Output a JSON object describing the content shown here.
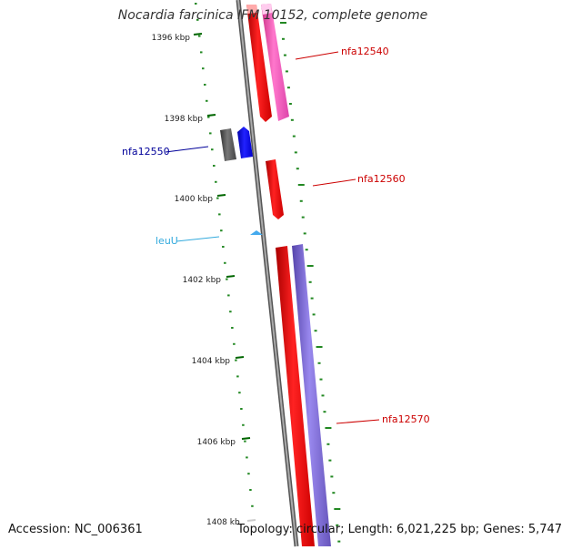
{
  "title": "Nocardia farcinica IFM 10152, complete genome",
  "accession": "Accession: NC_006361",
  "summary": "Topology: circular; Length: 6,021,225 bp; Genes: 5,747",
  "ruler": [
    {
      "label": "1396 kbp"
    },
    {
      "label": "1398 kbp"
    },
    {
      "label": "1400 kbp"
    },
    {
      "label": "1402 kbp"
    },
    {
      "label": "1404 kbp"
    },
    {
      "label": "1406 kbp"
    },
    {
      "label": "1408 kb"
    }
  ],
  "features": [
    {
      "name": "nfa12540",
      "color": "#cc0000"
    },
    {
      "name": "nfa12550",
      "color": "#000099"
    },
    {
      "name": "nfa12560",
      "color": "#cc0000"
    },
    {
      "name": "leuU",
      "color": "#33aadd"
    },
    {
      "name": "nfa12570",
      "color": "#cc0000"
    }
  ],
  "colors": {
    "ruler_major": "#006600",
    "ruler_minor": "#228822",
    "backbone": "#888888",
    "gene_red": "#ff0000",
    "gene_pink": "#ff55bb",
    "gene_blue": "#0000ff",
    "gene_grey": "#555555",
    "gene_purple": "#7766cc",
    "trna": "#44aaee"
  }
}
